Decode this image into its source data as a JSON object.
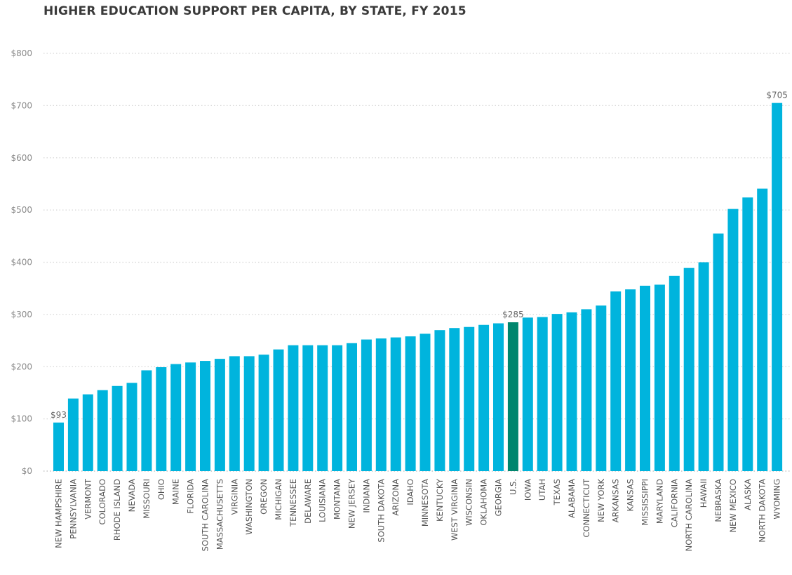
{
  "chart_data": {
    "type": "bar",
    "title": "HIGHER EDUCATION SUPPORT PER CAPITA, BY STATE, FY 2015",
    "xlabel": "",
    "ylabel": "",
    "ylim": [
      0,
      800
    ],
    "yticks": [
      0,
      100,
      200,
      300,
      400,
      500,
      600,
      700,
      800
    ],
    "ytick_labels": [
      "$0",
      "$100",
      "$200",
      "$300",
      "$400",
      "$500",
      "$600",
      "$700",
      "$800"
    ],
    "grid": true,
    "legend": "none",
    "bar_color": "#00B4DD",
    "highlight_color": "#00866E",
    "highlight_category": "U.S.",
    "categories": [
      "NEW HAMPSHIRE",
      "PENNSYLVANIA",
      "VERMONT",
      "COLORADO",
      "RHODE ISLAND",
      "NEVADA",
      "MISSOURI",
      "OHIO",
      "MAINE",
      "FLORIDA",
      "SOUTH CAROLINA",
      "MASSACHUSETTS",
      "VIRGINIA",
      "WASHINGTON",
      "OREGON",
      "MICHIGAN",
      "TENNESSEE",
      "DELAWARE",
      "LOUISIANA",
      "MONTANA",
      "NEW JERSEY",
      "INDIANA",
      "SOUTH DAKOTA",
      "ARIZONA",
      "IDAHO",
      "MINNESOTA",
      "KENTUCKY",
      "WEST VIRGINIA",
      "WISCONSIN",
      "OKLAHOMA",
      "GEORGIA",
      "U.S.",
      "IOWA",
      "UTAH",
      "TEXAS",
      "ALABAMA",
      "CONNECTICUT",
      "NEW YORK",
      "ARKANSAS",
      "KANSAS",
      "MISSISSIPPI",
      "MARYLAND",
      "CALIFORNIA",
      "NORTH CAROLINA",
      "HAWAII",
      "NEBRASKA",
      "NEW MEXICO",
      "ALASKA",
      "NORTH DAKOTA",
      "WYOMING"
    ],
    "values": [
      93,
      139,
      147,
      155,
      163,
      169,
      193,
      199,
      205,
      208,
      211,
      215,
      220,
      220,
      223,
      233,
      241,
      241,
      241,
      241,
      245,
      252,
      254,
      256,
      258,
      263,
      270,
      274,
      276,
      280,
      283,
      285,
      294,
      295,
      301,
      304,
      310,
      317,
      344,
      348,
      355,
      357,
      374,
      389,
      400,
      455,
      502,
      524,
      541,
      705
    ],
    "data_labels": [
      {
        "category": "NEW HAMPSHIRE",
        "text": "$93"
      },
      {
        "category": "U.S.",
        "text": "$285"
      },
      {
        "category": "WYOMING",
        "text": "$705"
      }
    ]
  }
}
